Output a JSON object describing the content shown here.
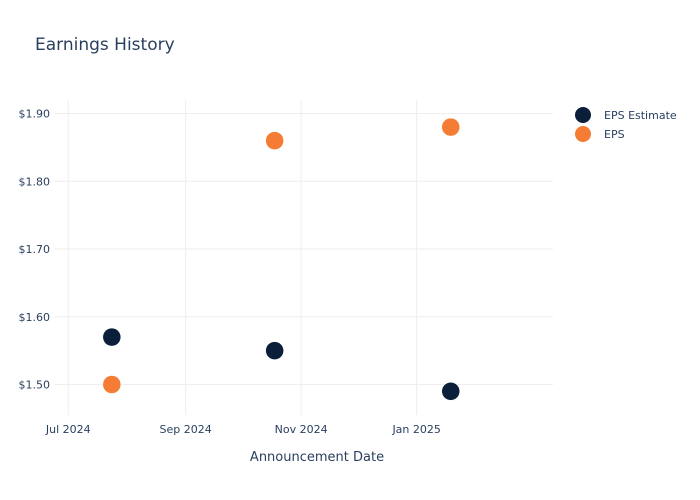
{
  "chart_data": {
    "type": "scatter",
    "title": "Earnings History",
    "xlabel": "Announcement Date",
    "ylabel": "",
    "x_ticks": [
      "Jul 2024",
      "Sep 2024",
      "Nov 2024",
      "Jan 2025"
    ],
    "y_ticks": [
      "$1.50",
      "$1.60",
      "$1.70",
      "$1.80",
      "$1.90"
    ],
    "xlim": [
      "2024-06-24",
      "2025-03-14"
    ],
    "ylim": [
      1.455,
      1.92
    ],
    "grid": true,
    "legend_position": "top-right",
    "series": [
      {
        "name": "EPS Estimate",
        "color": "#0b1f3a",
        "points": [
          {
            "x": "2024-07-24",
            "y": 1.57
          },
          {
            "x": "2024-10-18",
            "y": 1.55
          },
          {
            "x": "2025-01-19",
            "y": 1.49
          }
        ]
      },
      {
        "name": "EPS",
        "color": "#f47c35",
        "points": [
          {
            "x": "2024-07-24",
            "y": 1.5
          },
          {
            "x": "2024-10-18",
            "y": 1.86
          },
          {
            "x": "2025-01-19",
            "y": 1.88
          }
        ]
      }
    ]
  }
}
